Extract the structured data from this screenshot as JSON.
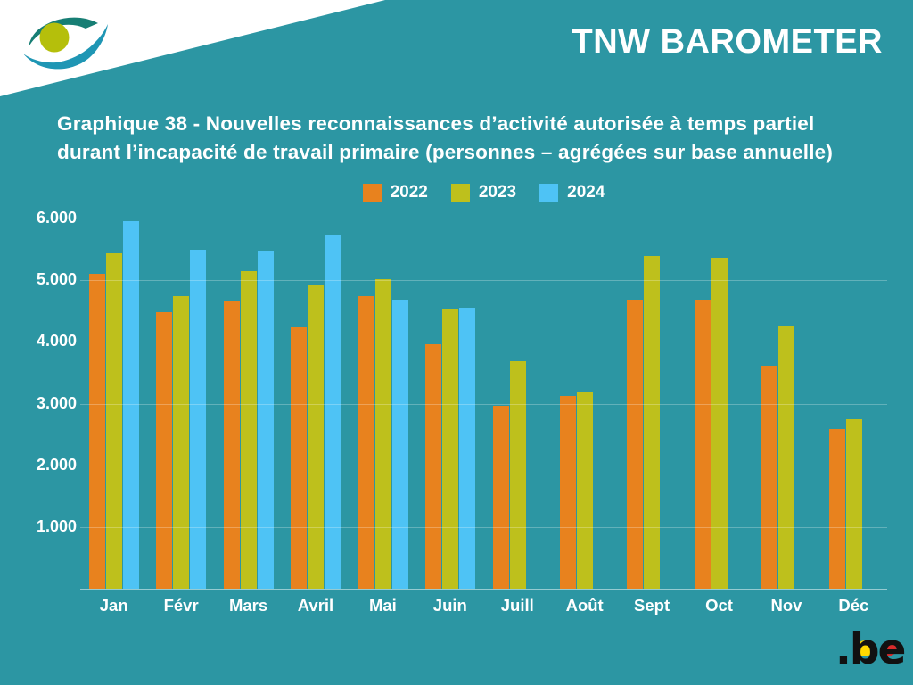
{
  "header": {
    "brand": "TNW BAROMETER"
  },
  "title": {
    "line1": "Graphique 38 - Nouvelles reconnaissances d’activité autorisée à temps partiel",
    "line2": "durant l’incapacité de travail primaire (personnes – agrégées sur base annuelle)"
  },
  "colors": {
    "background": "#2C96A3",
    "series_2022": "#E8821E",
    "series_2023": "#BEC01C",
    "series_2024": "#4EC3F5",
    "logo_circle": "#B5BF0B",
    "logo_swoosh_dark": "#177E74",
    "logo_swoosh_light": "#1F96B4",
    "be_yellow": "#FFD800",
    "be_red": "#D92B2B"
  },
  "footer": {
    "be_logo_text": ".be"
  },
  "chart_data": {
    "type": "bar",
    "title": "Graphique 38 - Nouvelles reconnaissances d’activité autorisée à temps partiel durant l’incapacité de travail primaire (personnes – agrégées sur base annuelle)",
    "categories": [
      "Jan",
      "Févr",
      "Mars",
      "Avril",
      "Mai",
      "Juin",
      "Juill",
      "Août",
      "Sept",
      "Oct",
      "Nov",
      "Déc"
    ],
    "series": [
      {
        "name": "2022",
        "color": "#E8821E",
        "values": [
          5110,
          4480,
          4650,
          4240,
          4740,
          3960,
          2960,
          3120,
          4680,
          4680,
          3610,
          2590
        ]
      },
      {
        "name": "2023",
        "color": "#BEC01C",
        "values": [
          5430,
          4740,
          5150,
          4920,
          5010,
          4520,
          3690,
          3180,
          5390,
          5370,
          4270,
          2740
        ]
      },
      {
        "name": "2024",
        "color": "#4EC3F5",
        "values": [
          5950,
          5500,
          5480,
          5720,
          4680,
          4550,
          null,
          null,
          null,
          null,
          null,
          null
        ]
      }
    ],
    "xlabel": "",
    "ylabel": "",
    "ylim": [
      0,
      6000
    ],
    "ytick_values": [
      1000,
      2000,
      3000,
      4000,
      5000,
      6000
    ],
    "ytick_labels": [
      "1.000",
      "2.000",
      "3.000",
      "4.000",
      "5.000",
      "6.000"
    ],
    "grid": true,
    "legend_position": "top-center"
  }
}
